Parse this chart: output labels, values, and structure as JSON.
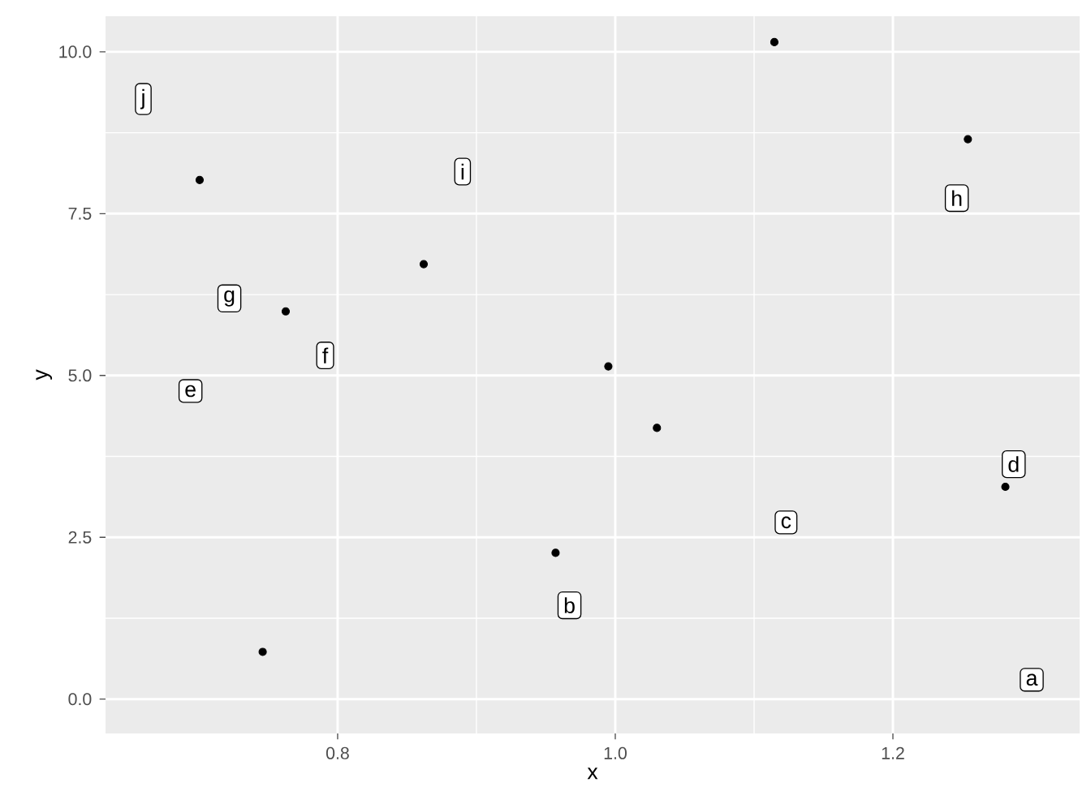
{
  "chart_data": {
    "type": "scatter",
    "xlabel": "x",
    "ylabel": "y",
    "x": [
      0.7006,
      0.7626,
      0.746,
      0.862,
      0.957,
      0.995,
      1.03,
      1.1146,
      1.254,
      1.281
    ],
    "values": [
      8.02,
      5.99,
      0.73,
      6.72,
      2.26,
      5.14,
      4.19,
      10.15,
      8.65,
      3.28
    ],
    "color": "#000000",
    "marker": "circle",
    "grid": true,
    "xlim": [
      0.6328,
      1.3345
    ],
    "ylim": [
      -0.53,
      10.55
    ],
    "xticks": [
      {
        "value": 0.8,
        "label": "0.8"
      },
      {
        "value": 1.0,
        "label": "1.0"
      },
      {
        "value": 1.2,
        "label": "1.2"
      }
    ],
    "yticks": [
      {
        "value": 0,
        "label": "0.0"
      },
      {
        "value": 2.5,
        "label": "2.5"
      },
      {
        "value": 5,
        "label": "5.0"
      },
      {
        "value": 7.5,
        "label": "7.5"
      },
      {
        "value": 10,
        "label": "10.0"
      }
    ],
    "annotations": [
      {
        "text": "a",
        "x": 1.3,
        "y": 0.3
      },
      {
        "text": "b",
        "x": 0.967,
        "y": 1.45
      },
      {
        "text": "c",
        "x": 1.123,
        "y": 2.73
      },
      {
        "text": "d",
        "x": 1.287,
        "y": 3.63
      },
      {
        "text": "e",
        "x": 0.694,
        "y": 4.76
      },
      {
        "text": "f",
        "x": 0.791,
        "y": 5.31
      },
      {
        "text": "g",
        "x": 0.722,
        "y": 6.19
      },
      {
        "text": "h",
        "x": 1.246,
        "y": 7.74
      },
      {
        "text": "i",
        "x": 0.89,
        "y": 8.15
      },
      {
        "text": "j",
        "x": 0.66,
        "y": 9.27
      }
    ]
  }
}
